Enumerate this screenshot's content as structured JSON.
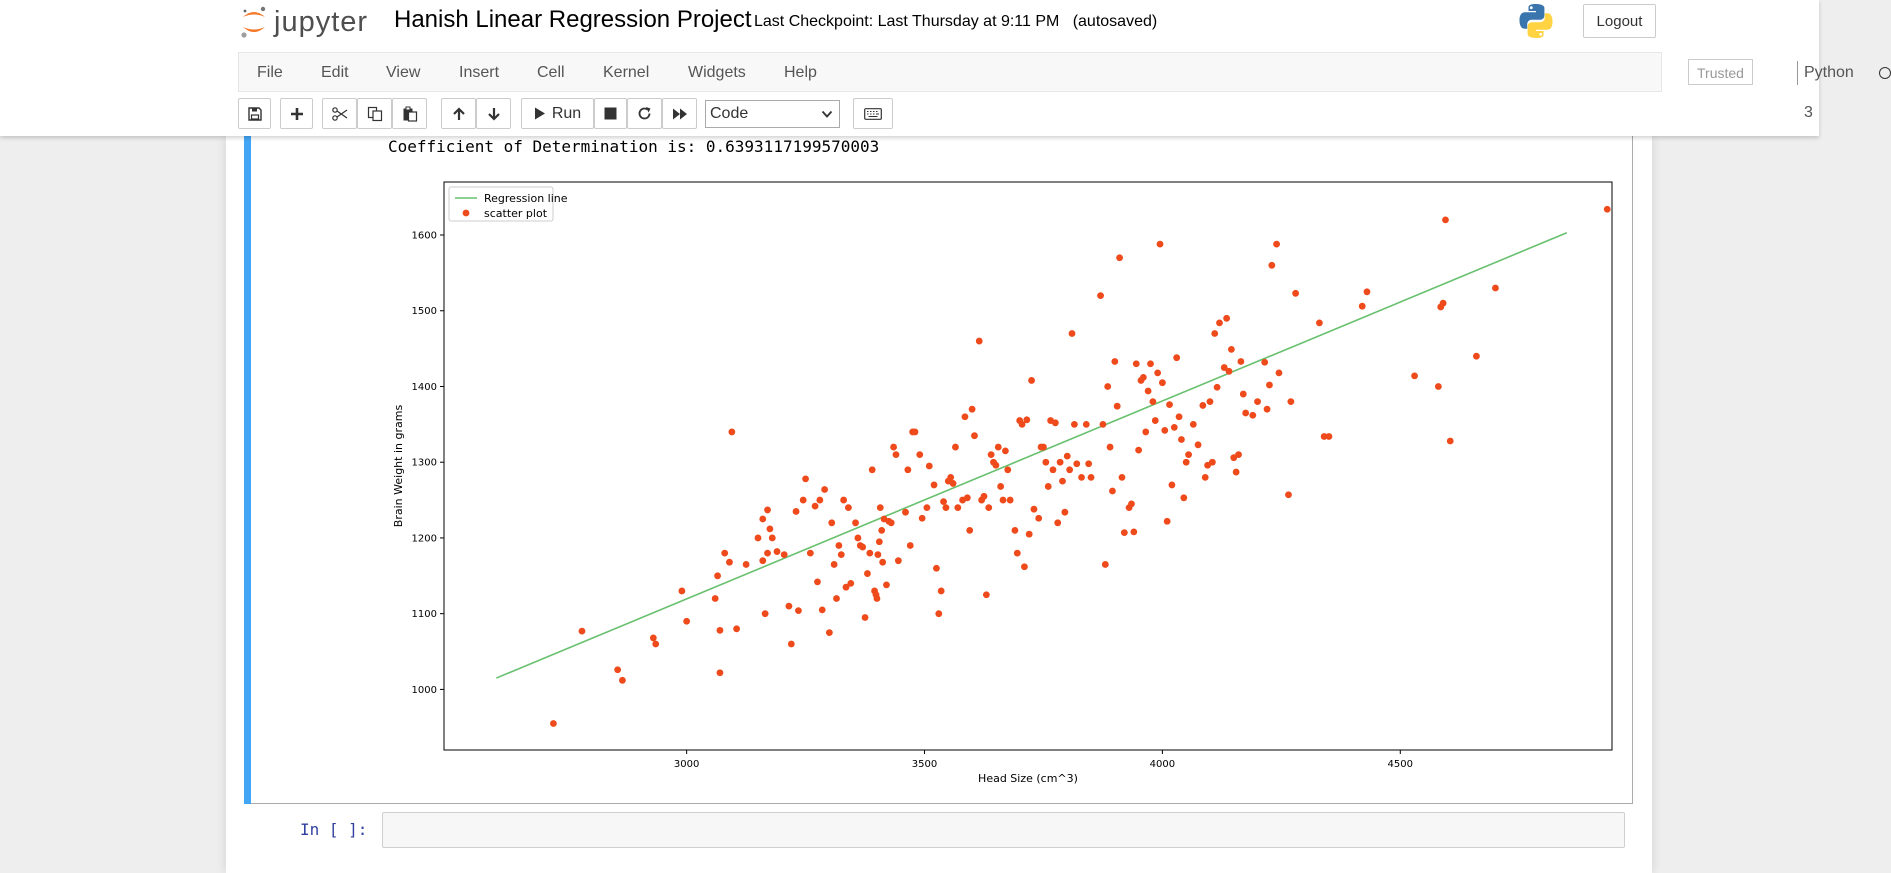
{
  "header": {
    "logo_text": "jupyter",
    "notebook_title": "Hanish Linear Regression Project",
    "checkpoint": "Last Checkpoint: Last Thursday at 9:11 PM",
    "autosave": "(autosaved)",
    "logout_label": "Logout"
  },
  "menu": {
    "items": [
      "File",
      "Edit",
      "View",
      "Insert",
      "Cell",
      "Kernel",
      "Widgets",
      "Help"
    ],
    "trusted_label": "Trusted",
    "kernel_name": "Python 3"
  },
  "toolbar": {
    "run_label": "Run",
    "cell_type": "Code",
    "icons": [
      "save-icon",
      "plus-icon",
      "cut-icon",
      "copy-icon",
      "paste-icon",
      "arrow-up-icon",
      "arrow-down-icon",
      "run-icon",
      "stop-icon",
      "restart-icon",
      "fast-forward-icon",
      "keyboard-icon"
    ]
  },
  "output": {
    "coefficient_text": "Coefficient of Determination is: 0.6393117199570003"
  },
  "next_cell": {
    "prompt": "In [ ]:"
  },
  "colors": {
    "scatter": "#ee4a1c",
    "line": "#69c06f",
    "cell_bar": "#42a5f5"
  },
  "chart_data": {
    "type": "scatter",
    "xlabel": "Head Size (cm^3)",
    "ylabel": "Brain Weight in grams",
    "xlim": [
      2490,
      4945
    ],
    "ylim": [
      920,
      1670
    ],
    "xticks": [
      3000,
      3500,
      4000,
      4500
    ],
    "yticks": [
      1000,
      1100,
      1200,
      1300,
      1400,
      1500,
      1600
    ],
    "legend_position": "top-left",
    "series": [
      {
        "name": "Regression line",
        "kind": "line",
        "x": [
          2600,
          4850
        ],
        "y": [
          1015,
          1603
        ]
      },
      {
        "name": "scatter plot",
        "kind": "scatter",
        "points": [
          [
            2720,
            955
          ],
          [
            2780,
            1077
          ],
          [
            2855,
            1026
          ],
          [
            2865,
            1012
          ],
          [
            2930,
            1068
          ],
          [
            2935,
            1060
          ],
          [
            2990,
            1130
          ],
          [
            3000,
            1090
          ],
          [
            3060,
            1120
          ],
          [
            3065,
            1150
          ],
          [
            3070,
            1022
          ],
          [
            3070,
            1078
          ],
          [
            3080,
            1180
          ],
          [
            3090,
            1168
          ],
          [
            3095,
            1340
          ],
          [
            3105,
            1080
          ],
          [
            3125,
            1165
          ],
          [
            3150,
            1200
          ],
          [
            3160,
            1225
          ],
          [
            3160,
            1170
          ],
          [
            3165,
            1100
          ],
          [
            3170,
            1237
          ],
          [
            3170,
            1180
          ],
          [
            3175,
            1212
          ],
          [
            3180,
            1200
          ],
          [
            3190,
            1182
          ],
          [
            3205,
            1178
          ],
          [
            3215,
            1110
          ],
          [
            3220,
            1060
          ],
          [
            3230,
            1235
          ],
          [
            3235,
            1104
          ],
          [
            3245,
            1250
          ],
          [
            3250,
            1278
          ],
          [
            3260,
            1180
          ],
          [
            3270,
            1242
          ],
          [
            3275,
            1142
          ],
          [
            3280,
            1250
          ],
          [
            3285,
            1105
          ],
          [
            3290,
            1264
          ],
          [
            3300,
            1075
          ],
          [
            3305,
            1220
          ],
          [
            3310,
            1165
          ],
          [
            3315,
            1120
          ],
          [
            3320,
            1190
          ],
          [
            3325,
            1178
          ],
          [
            3330,
            1250
          ],
          [
            3335,
            1135
          ],
          [
            3340,
            1240
          ],
          [
            3345,
            1140
          ],
          [
            3355,
            1220
          ],
          [
            3360,
            1200
          ],
          [
            3365,
            1190
          ],
          [
            3370,
            1188
          ],
          [
            3375,
            1095
          ],
          [
            3380,
            1153
          ],
          [
            3385,
            1180
          ],
          [
            3390,
            1290
          ],
          [
            3395,
            1130
          ],
          [
            3398,
            1125
          ],
          [
            3400,
            1120
          ],
          [
            3402,
            1178
          ],
          [
            3405,
            1195
          ],
          [
            3407,
            1240
          ],
          [
            3410,
            1210
          ],
          [
            3412,
            1168
          ],
          [
            3415,
            1225
          ],
          [
            3420,
            1138
          ],
          [
            3425,
            1222
          ],
          [
            3430,
            1220
          ],
          [
            3435,
            1320
          ],
          [
            3440,
            1310
          ],
          [
            3445,
            1170
          ],
          [
            3460,
            1234
          ],
          [
            3465,
            1290
          ],
          [
            3470,
            1190
          ],
          [
            3475,
            1340
          ],
          [
            3480,
            1340
          ],
          [
            3490,
            1310
          ],
          [
            3495,
            1226
          ],
          [
            3505,
            1240
          ],
          [
            3510,
            1295
          ],
          [
            3520,
            1270
          ],
          [
            3525,
            1160
          ],
          [
            3530,
            1100
          ],
          [
            3535,
            1130
          ],
          [
            3540,
            1248
          ],
          [
            3545,
            1240
          ],
          [
            3550,
            1275
          ],
          [
            3555,
            1280
          ],
          [
            3560,
            1272
          ],
          [
            3565,
            1320
          ],
          [
            3570,
            1240
          ],
          [
            3580,
            1250
          ],
          [
            3585,
            1360
          ],
          [
            3590,
            1253
          ],
          [
            3595,
            1210
          ],
          [
            3600,
            1370
          ],
          [
            3605,
            1335
          ],
          [
            3615,
            1460
          ],
          [
            3620,
            1250
          ],
          [
            3625,
            1255
          ],
          [
            3630,
            1125
          ],
          [
            3635,
            1240
          ],
          [
            3640,
            1310
          ],
          [
            3645,
            1300
          ],
          [
            3650,
            1296
          ],
          [
            3655,
            1320
          ],
          [
            3660,
            1268
          ],
          [
            3665,
            1250
          ],
          [
            3670,
            1315
          ],
          [
            3675,
            1290
          ],
          [
            3680,
            1250
          ],
          [
            3690,
            1210
          ],
          [
            3695,
            1180
          ],
          [
            3700,
            1355
          ],
          [
            3705,
            1350
          ],
          [
            3710,
            1162
          ],
          [
            3715,
            1356
          ],
          [
            3720,
            1205
          ],
          [
            3725,
            1408
          ],
          [
            3730,
            1238
          ],
          [
            3740,
            1226
          ],
          [
            3745,
            1320
          ],
          [
            3750,
            1320
          ],
          [
            3755,
            1300
          ],
          [
            3760,
            1268
          ],
          [
            3765,
            1355
          ],
          [
            3770,
            1290
          ],
          [
            3775,
            1352
          ],
          [
            3780,
            1220
          ],
          [
            3785,
            1300
          ],
          [
            3790,
            1275
          ],
          [
            3795,
            1234
          ],
          [
            3800,
            1308
          ],
          [
            3805,
            1290
          ],
          [
            3810,
            1470
          ],
          [
            3815,
            1350
          ],
          [
            3820,
            1298
          ],
          [
            3830,
            1280
          ],
          [
            3840,
            1350
          ],
          [
            3845,
            1298
          ],
          [
            3850,
            1280
          ],
          [
            3870,
            1520
          ],
          [
            3875,
            1350
          ],
          [
            3880,
            1165
          ],
          [
            3885,
            1400
          ],
          [
            3890,
            1320
          ],
          [
            3895,
            1262
          ],
          [
            3900,
            1433
          ],
          [
            3905,
            1374
          ],
          [
            3910,
            1570
          ],
          [
            3915,
            1280
          ],
          [
            3920,
            1207
          ],
          [
            3930,
            1240
          ],
          [
            3935,
            1245
          ],
          [
            3940,
            1208
          ],
          [
            3945,
            1430
          ],
          [
            3950,
            1316
          ],
          [
            3955,
            1408
          ],
          [
            3960,
            1412
          ],
          [
            3965,
            1340
          ],
          [
            3970,
            1394
          ],
          [
            3975,
            1430
          ],
          [
            3980,
            1380
          ],
          [
            3985,
            1355
          ],
          [
            3990,
            1418
          ],
          [
            3995,
            1588
          ],
          [
            4000,
            1405
          ],
          [
            4005,
            1342
          ],
          [
            4010,
            1222
          ],
          [
            4015,
            1376
          ],
          [
            4020,
            1270
          ],
          [
            4025,
            1346
          ],
          [
            4030,
            1438
          ],
          [
            4035,
            1360
          ],
          [
            4040,
            1330
          ],
          [
            4045,
            1253
          ],
          [
            4050,
            1300
          ],
          [
            4055,
            1310
          ],
          [
            4065,
            1350
          ],
          [
            4075,
            1323
          ],
          [
            4085,
            1375
          ],
          [
            4090,
            1280
          ],
          [
            4095,
            1296
          ],
          [
            4100,
            1380
          ],
          [
            4105,
            1300
          ],
          [
            4110,
            1470
          ],
          [
            4115,
            1399
          ],
          [
            4120,
            1484
          ],
          [
            4130,
            1425
          ],
          [
            4135,
            1490
          ],
          [
            4140,
            1420
          ],
          [
            4145,
            1449
          ],
          [
            4150,
            1306
          ],
          [
            4155,
            1287
          ],
          [
            4160,
            1310
          ],
          [
            4165,
            1433
          ],
          [
            4170,
            1390
          ],
          [
            4175,
            1365
          ],
          [
            4190,
            1362
          ],
          [
            4200,
            1380
          ],
          [
            4215,
            1432
          ],
          [
            4220,
            1370
          ],
          [
            4225,
            1402
          ],
          [
            4230,
            1560
          ],
          [
            4240,
            1588
          ],
          [
            4245,
            1418
          ],
          [
            4265,
            1257
          ],
          [
            4270,
            1380
          ],
          [
            4280,
            1523
          ],
          [
            4330,
            1484
          ],
          [
            4340,
            1334
          ],
          [
            4350,
            1334
          ],
          [
            4420,
            1506
          ],
          [
            4430,
            1525
          ],
          [
            4530,
            1414
          ],
          [
            4580,
            1400
          ],
          [
            4585,
            1505
          ],
          [
            4590,
            1510
          ],
          [
            4595,
            1620
          ],
          [
            4605,
            1328
          ],
          [
            4660,
            1440
          ],
          [
            4700,
            1530
          ],
          [
            4935,
            1634
          ]
        ]
      }
    ]
  }
}
